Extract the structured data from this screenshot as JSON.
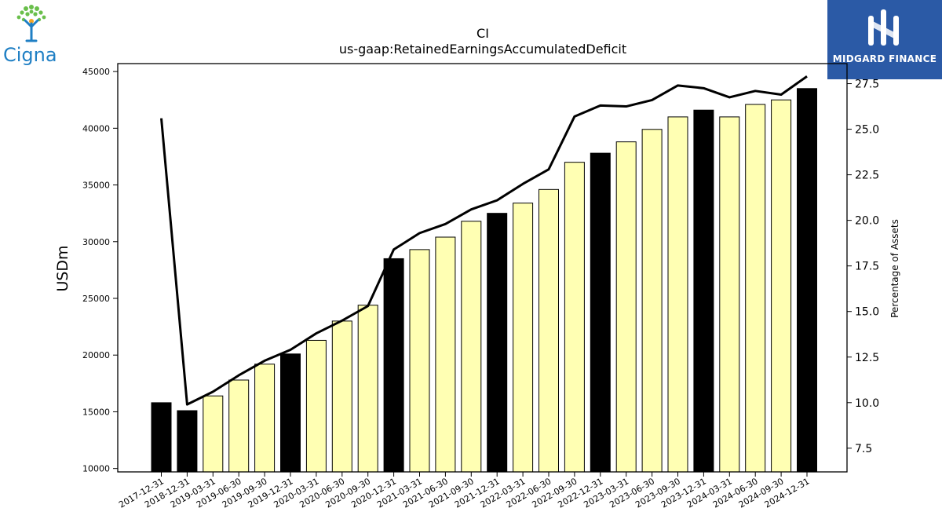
{
  "header": {
    "company_logo": "Cigna",
    "publisher_logo": "MIDGARD FINANCE"
  },
  "colors": {
    "year_end_bar": "#000000",
    "quarter_bar": "#ffffb3",
    "line": "#000000",
    "midgard_bg": "#2b5aa6",
    "cigna_blue": "#1f7fc4",
    "cigna_green": "#6abf4b"
  },
  "chart_data": {
    "type": "bar",
    "title": "CI",
    "subtitle": "us-gaap:RetainedEarningsAccumulatedDeficit",
    "ylabel": "USDm",
    "y2label": "Percentage of Assets",
    "ylim": [
      9700,
      45700
    ],
    "y2lim": [
      6.2,
      28.6
    ],
    "yticks": [
      10000,
      15000,
      20000,
      25000,
      30000,
      35000,
      40000,
      45000
    ],
    "y2ticks": [
      7.5,
      10.0,
      12.5,
      15.0,
      17.5,
      20.0,
      22.5,
      25.0,
      27.5
    ],
    "categories": [
      "2017-12-31",
      "2018-12-31",
      "2019-03-31",
      "2019-06-30",
      "2019-09-30",
      "2019-12-31",
      "2020-03-31",
      "2020-06-30",
      "2020-09-30",
      "2020-12-31",
      "2021-03-31",
      "2021-06-30",
      "2021-09-30",
      "2021-12-31",
      "2022-03-31",
      "2022-06-30",
      "2022-09-30",
      "2022-12-31",
      "2023-03-31",
      "2023-06-30",
      "2023-09-30",
      "2023-12-31",
      "2024-03-31",
      "2024-06-30",
      "2024-09-30",
      "2024-12-31"
    ],
    "series": [
      {
        "type": "bar",
        "values": [
          15800,
          15100,
          16400,
          17800,
          19200,
          20100,
          21300,
          23000,
          24400,
          28500,
          29300,
          30400,
          31800,
          32500,
          33400,
          34600,
          37000,
          37800,
          38800,
          39900,
          41000,
          41600,
          41000,
          42100,
          42500,
          43500
        ],
        "year_end": [
          true,
          true,
          false,
          false,
          false,
          true,
          false,
          false,
          false,
          true,
          false,
          false,
          false,
          true,
          false,
          false,
          false,
          true,
          false,
          false,
          false,
          true,
          false,
          false,
          false,
          true
        ]
      },
      {
        "type": "line",
        "axis": "right",
        "values": [
          25.6,
          9.9,
          10.6,
          11.5,
          12.3,
          12.9,
          13.8,
          14.5,
          15.3,
          18.4,
          19.3,
          19.8,
          20.6,
          21.1,
          22.0,
          22.8,
          25.7,
          26.3,
          26.25,
          26.6,
          27.4,
          27.25,
          26.75,
          27.1,
          26.9,
          27.9
        ]
      }
    ]
  }
}
